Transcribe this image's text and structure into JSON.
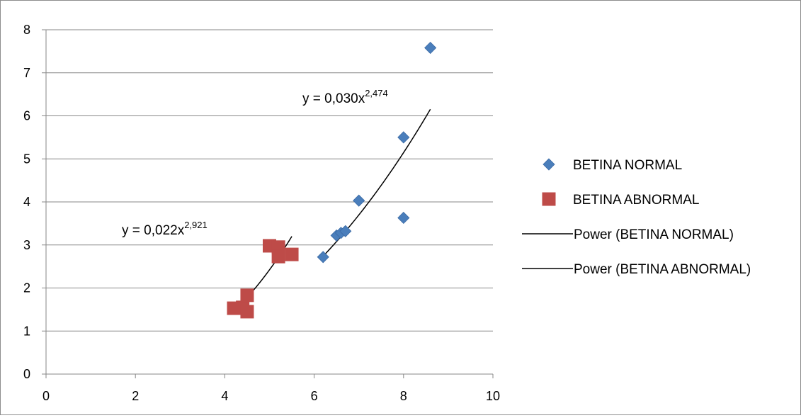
{
  "chart_data": {
    "type": "scatter",
    "title": "",
    "xlabel": "",
    "ylabel": "",
    "xlim": [
      0,
      10
    ],
    "ylim": [
      0,
      8
    ],
    "x_ticks": [
      "0",
      "2",
      "4",
      "6",
      "8",
      "10"
    ],
    "y_ticks": [
      "0",
      "1",
      "2",
      "3",
      "4",
      "5",
      "6",
      "7",
      "8"
    ],
    "grid": "horizontal major gridlines",
    "legend_position": "right",
    "series": [
      {
        "name": "BETINA NORMAL",
        "marker": "diamond",
        "color": "#4a7ebb",
        "points": [
          {
            "x": 6.2,
            "y": 2.72
          },
          {
            "x": 6.5,
            "y": 3.22
          },
          {
            "x": 6.6,
            "y": 3.28
          },
          {
            "x": 6.7,
            "y": 3.32
          },
          {
            "x": 7.0,
            "y": 4.03
          },
          {
            "x": 8.0,
            "y": 5.5
          },
          {
            "x": 8.0,
            "y": 3.63
          },
          {
            "x": 8.6,
            "y": 7.58
          }
        ]
      },
      {
        "name": "BETINA ABNORMAL",
        "marker": "square",
        "color": "#be4b48",
        "points": [
          {
            "x": 4.2,
            "y": 1.53
          },
          {
            "x": 4.4,
            "y": 1.55
          },
          {
            "x": 4.5,
            "y": 1.83
          },
          {
            "x": 4.5,
            "y": 1.45
          },
          {
            "x": 5.0,
            "y": 2.98
          },
          {
            "x": 5.2,
            "y": 2.95
          },
          {
            "x": 5.2,
            "y": 2.73
          },
          {
            "x": 5.5,
            "y": 2.78
          }
        ]
      }
    ],
    "trendlines": [
      {
        "name": "Power (BETINA NORMAL)",
        "type": "power",
        "coef": 0.03,
        "exponent": 2.474,
        "x_range": [
          6.2,
          8.6
        ],
        "color": "#000000",
        "equation_base": "y = 0,030x",
        "equation_exp": "2,474"
      },
      {
        "name": "Power (BETINA ABNORMAL)",
        "type": "power",
        "coef": 0.022,
        "exponent": 2.921,
        "x_range": [
          4.2,
          5.5
        ],
        "color": "#000000",
        "equation_base": "y = 0,022x",
        "equation_exp": "2,921"
      }
    ]
  }
}
